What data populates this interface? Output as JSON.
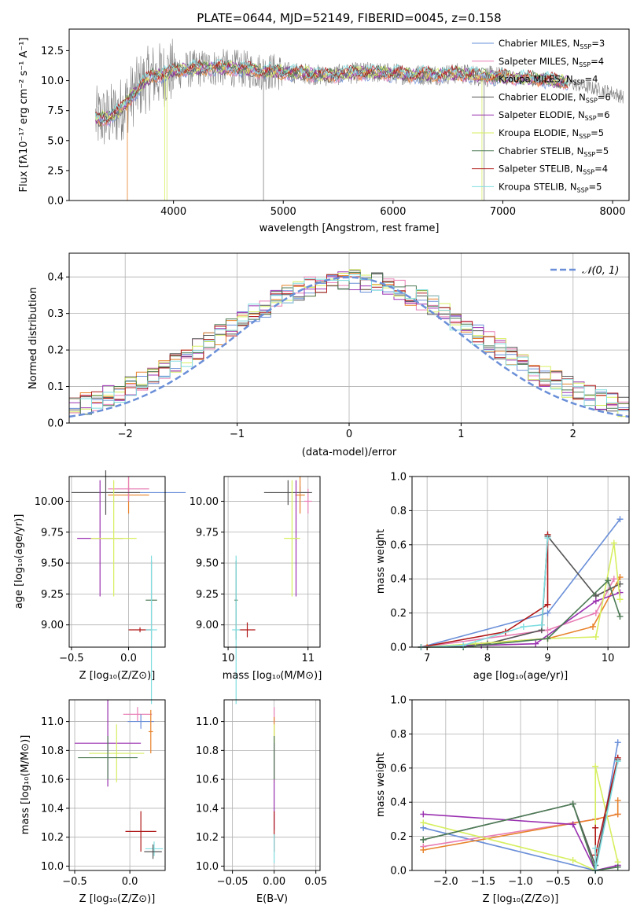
{
  "colors": {
    "chabrier_miles": "#6a8fd8",
    "salpeter_miles": "#e87fb5",
    "kroupa_miles": "#e8822a",
    "chabrier_elodie": "#555555",
    "salpeter_elodie": "#9a30b0",
    "kroupa_elodie": "#d6ef60",
    "chabrier_stelib": "#4c7a55",
    "salpeter_stelib": "#b01818",
    "kroupa_stelib": "#80dde0",
    "normal": "#6a8fd8",
    "grid": "#b0b0b0",
    "spectrum": "#808080"
  },
  "chart_data": [
    {
      "id": "spectrum",
      "type": "line",
      "title": "PLATE=0644, MJD=52149, FIBERID=0045, z=0.158",
      "xlabel": "wavelength [Angstrom, rest frame]",
      "ylabel": "Flux [fλ10⁻¹⁷ erg cm⁻² s⁻¹ A⁻¹]",
      "xlim": [
        3050,
        8150
      ],
      "ylim": [
        0,
        14.3
      ],
      "xticks": [
        "4000",
        "5000",
        "6000",
        "7000",
        "8000"
      ],
      "yticks": [
        "0.0",
        "2.5",
        "5.0",
        "7.5",
        "10.0",
        "12.5"
      ],
      "grid": false,
      "legend_position": "top-right",
      "legend": [
        {
          "label": "Chabrier MILES, N",
          "sub": "SSP",
          "value": "=3"
        },
        {
          "label": "Salpeter MILES, N",
          "sub": "SSP",
          "value": "=4"
        },
        {
          "label": "Kroupa MILES, N",
          "sub": "SSP",
          "value": "=4"
        },
        {
          "label": "Chabrier ELODIE, N",
          "sub": "SSP",
          "value": "=6"
        },
        {
          "label": "Salpeter ELODIE, N",
          "sub": "SSP",
          "value": "=6"
        },
        {
          "label": "Kroupa ELODIE, N",
          "sub": "SSP",
          "value": "=5"
        },
        {
          "label": "Chabrier STELIB, N",
          "sub": "SSP",
          "value": "=5"
        },
        {
          "label": "Salpeter STELIB, N",
          "sub": "SSP",
          "value": "=4"
        },
        {
          "label": "Kroupa STELIB, N",
          "sub": "SSP",
          "value": "=5"
        }
      ],
      "spectrum_anchors": [
        [
          3290,
          6.8
        ],
        [
          3400,
          6.9
        ],
        [
          3500,
          7.4
        ],
        [
          3600,
          8.5
        ],
        [
          3700,
          9.6
        ],
        [
          3800,
          10.4
        ],
        [
          3900,
          10.5
        ],
        [
          4000,
          10.8
        ],
        [
          4200,
          11.0
        ],
        [
          4400,
          11.1
        ],
        [
          4600,
          11.0
        ],
        [
          4800,
          10.8
        ],
        [
          5000,
          10.7
        ],
        [
          5200,
          10.6
        ],
        [
          5400,
          10.4
        ],
        [
          5600,
          10.6
        ],
        [
          5800,
          10.7
        ],
        [
          6000,
          10.6
        ],
        [
          6200,
          10.5
        ],
        [
          6400,
          10.5
        ],
        [
          6600,
          10.6
        ],
        [
          6800,
          10.4
        ],
        [
          7000,
          10.3
        ],
        [
          7200,
          10.2
        ],
        [
          7400,
          10.1
        ],
        [
          7600,
          9.8
        ],
        [
          7800,
          9.4
        ],
        [
          8000,
          9.0
        ],
        [
          8100,
          8.6
        ]
      ]
    },
    {
      "id": "residuals",
      "type": "histogram",
      "xlabel": "(data-model)/error",
      "ylabel": "Normed distribution",
      "xlim": [
        -2.5,
        2.5
      ],
      "ylim": [
        0,
        0.465
      ],
      "xticks": [
        "−2",
        "−1",
        "0",
        "1",
        "2"
      ],
      "yticks": [
        "0.0",
        "0.1",
        "0.2",
        "0.3",
        "0.4"
      ],
      "grid": true,
      "legend_position": "top-right",
      "legend": [
        {
          "label": "𝒩(0, 1)"
        }
      ],
      "bin_width": 0.1,
      "bins_from": -2.5
    },
    {
      "id": "age_vs_Z",
      "type": "errorbar",
      "xlabel": "Z [log₁₀(Z/Z⊙)]",
      "ylabel": "age  [log₁₀(age/yr)]",
      "xlim": [
        -0.52,
        0.32
      ],
      "ylim": [
        8.82,
        10.2
      ],
      "xticks": [
        "−0.5",
        "0.0"
      ],
      "yticks": [
        "9.00",
        "9.25",
        "9.50",
        "9.75",
        "10.00"
      ],
      "grid": true,
      "points": [
        {
          "series": "chabrier_miles",
          "x": 0.0,
          "xerr": 0.5,
          "y": 10.07,
          "yerr": 0.05
        },
        {
          "series": "kroupa_miles",
          "x": 0.0,
          "xerr": 0.18,
          "y": 10.05,
          "yerr": 0.15
        },
        {
          "series": "salpeter_miles",
          "x": 0.0,
          "xerr": 0.18,
          "y": 10.1,
          "yerr": 0.1
        },
        {
          "series": "chabrier_elodie",
          "x": -0.2,
          "xerr": 0.3,
          "y": 10.07,
          "yerr": 0.18
        },
        {
          "series": "salpeter_elodie",
          "x": -0.25,
          "xerr": 0.2,
          "y": 9.7,
          "yerr": 0.47
        },
        {
          "series": "kroupa_elodie",
          "x": -0.13,
          "xerr": 0.2,
          "y": 9.7,
          "yerr": 0.47
        },
        {
          "series": "chabrier_stelib",
          "x": 0.2,
          "xerr": 0.05,
          "y": 9.2,
          "yerr": 0.32
        },
        {
          "series": "salpeter_stelib",
          "x": 0.1,
          "xerr": 0.1,
          "y": 8.96,
          "yerr": 0.02
        },
        {
          "series": "kroupa_stelib",
          "x": 0.2,
          "xerr": 0.05,
          "y": 8.96,
          "yerr": 0.6
        }
      ]
    },
    {
      "id": "age_vs_mass",
      "type": "errorbar",
      "xlabel": "mass [log₁₀(M/M⊙)]",
      "xlim": [
        9.95,
        11.15
      ],
      "ylim": [
        8.82,
        10.2
      ],
      "xticks": [
        "10",
        "11"
      ],
      "yticks": [
        "9.00",
        "9.25",
        "9.50",
        "9.75",
        "10.00"
      ],
      "grid": true,
      "points": [
        {
          "series": "chabrier_miles",
          "x": 10.9,
          "xerr": 0.1,
          "y": 10.07,
          "yerr": 0.05
        },
        {
          "series": "kroupa_miles",
          "x": 10.9,
          "xerr": 0.06,
          "y": 10.05,
          "yerr": 0.15
        },
        {
          "series": "salpeter_miles",
          "x": 11.0,
          "xerr": 0.05,
          "y": 10.0,
          "yerr": 0.1
        },
        {
          "series": "chabrier_elodie",
          "x": 10.75,
          "xerr": 0.3,
          "y": 10.07,
          "yerr": 0.1
        },
        {
          "series": "salpeter_elodie",
          "x": 10.85,
          "xerr": 0.02,
          "y": 9.7,
          "yerr": 0.47
        },
        {
          "series": "kroupa_elodie",
          "x": 10.8,
          "xerr": 0.1,
          "y": 9.7,
          "yerr": 0.47
        },
        {
          "series": "chabrier_stelib",
          "x": 10.1,
          "xerr": 0.02,
          "y": 9.2,
          "yerr": 0.32
        },
        {
          "series": "salpeter_stelib",
          "x": 10.24,
          "xerr": 0.1,
          "y": 8.96,
          "yerr": 0.06
        },
        {
          "series": "kroupa_stelib",
          "x": 10.1,
          "xerr": 0.05,
          "y": 8.96,
          "yerr": 0.6
        }
      ]
    },
    {
      "id": "weight_vs_age",
      "type": "line",
      "xlabel": "age  [log₁₀(age/yr)]",
      "ylabel": "mass weight",
      "xlim": [
        6.75,
        10.35
      ],
      "ylim": [
        0,
        1
      ],
      "xticks": [
        "7",
        "8",
        "9",
        "10"
      ],
      "yticks": [
        "0.0",
        "0.2",
        "0.4",
        "0.6",
        "0.8",
        "1.0"
      ],
      "grid": true,
      "series": [
        {
          "key": "chabrier_miles",
          "x": [
            6.9,
            9.0,
            10.2
          ],
          "y": [
            0.0,
            0.2,
            0.75
          ]
        },
        {
          "key": "salpeter_miles",
          "x": [
            6.9,
            9.0,
            9.8,
            10.1
          ],
          "y": [
            0.0,
            0.1,
            0.2,
            0.4
          ]
        },
        {
          "key": "kroupa_miles",
          "x": [
            7.0,
            9.0,
            9.75,
            10.2
          ],
          "y": [
            0.0,
            0.05,
            0.12,
            0.41
          ]
        },
        {
          "key": "chabrier_elodie",
          "x": [
            6.9,
            8.0,
            8.9,
            9.0,
            9.8,
            10.2
          ],
          "y": [
            0.0,
            0.02,
            0.1,
            0.65,
            0.3,
            0.37
          ]
        },
        {
          "key": "salpeter_elodie",
          "x": [
            6.9,
            7.9,
            8.8,
            9.8,
            10.2
          ],
          "y": [
            0.0,
            0.01,
            0.02,
            0.27,
            0.32
          ]
        },
        {
          "key": "kroupa_elodie",
          "x": [
            6.9,
            7.8,
            9.0,
            9.8,
            10.1,
            10.2
          ],
          "y": [
            0.0,
            0.02,
            0.05,
            0.06,
            0.61,
            0.28
          ]
        },
        {
          "key": "chabrier_stelib",
          "x": [
            6.9,
            7.6,
            9.0,
            10.0,
            10.2
          ],
          "y": [
            0.0,
            0.0,
            0.05,
            0.39,
            0.18
          ]
        },
        {
          "key": "salpeter_stelib",
          "x": [
            6.9,
            8.3,
            9.0,
            9.0
          ],
          "y": [
            0.0,
            0.09,
            0.25,
            0.66
          ]
        },
        {
          "key": "kroupa_stelib",
          "x": [
            6.9,
            7.6,
            8.6,
            8.9,
            9.0
          ],
          "y": [
            0.0,
            0.01,
            0.12,
            0.13,
            0.64
          ]
        }
      ]
    },
    {
      "id": "mass_vs_Z",
      "type": "errorbar",
      "xlabel": "Z [log₁₀(Z/Z⊙)]",
      "ylabel": "mass [log₁₀(M/M⊙)]",
      "xlim": [
        -0.55,
        0.32
      ],
      "ylim": [
        9.97,
        11.15
      ],
      "xticks": [
        "−0.5",
        "0.0"
      ],
      "yticks": [
        "10.0",
        "10.2",
        "10.4",
        "10.6",
        "10.8",
        "11.0"
      ],
      "grid": true,
      "points": [
        {
          "series": "salpeter_miles",
          "x": 0.07,
          "xerr": 0.13,
          "y": 11.05,
          "yerr": 0.05
        },
        {
          "series": "chabrier_miles",
          "x": 0.1,
          "xerr": 0.12,
          "y": 11.0,
          "yerr": 0.05
        },
        {
          "series": "kroupa_miles",
          "x": 0.19,
          "xerr": 0.02,
          "y": 10.93,
          "yerr": 0.15
        },
        {
          "series": "salpeter_elodie",
          "x": -0.2,
          "xerr": 0.3,
          "y": 10.85,
          "yerr": 0.3
        },
        {
          "series": "kroupa_elodie",
          "x": -0.12,
          "xerr": 0.25,
          "y": 10.78,
          "yerr": 0.2
        },
        {
          "series": "chabrier_stelib",
          "x": -0.2,
          "xerr": 0.27,
          "y": 10.75,
          "yerr": 0.15
        },
        {
          "series": "salpeter_stelib",
          "x": 0.1,
          "xerr": 0.14,
          "y": 10.24,
          "yerr": 0.14
        },
        {
          "series": "kroupa_stelib",
          "x": 0.22,
          "xerr": 0.08,
          "y": 10.12,
          "yerr": 0.05
        },
        {
          "series": "chabrier_elodie",
          "x": 0.21,
          "xerr": 0.08,
          "y": 10.1,
          "yerr": 0.05
        }
      ]
    },
    {
      "id": "mass_vs_ebv",
      "type": "errorbar",
      "xlabel": "E(B-V)",
      "xlim": [
        -0.06,
        0.055
      ],
      "ylim": [
        9.97,
        11.15
      ],
      "xticks": [
        "−0.05",
        "0.00",
        "0.05"
      ],
      "yticks": [
        "10.0",
        "10.2",
        "10.4",
        "10.6",
        "10.8",
        "11.0"
      ],
      "grid": true,
      "points": [
        {
          "series": "salpeter_miles",
          "x": 0.0,
          "xerr": 0.0,
          "y": 11.05,
          "yerr": 0.05
        },
        {
          "series": "kroupa_miles",
          "x": 0.0,
          "xerr": 0.0,
          "y": 10.93,
          "yerr": 0.1
        },
        {
          "series": "kroupa_elodie",
          "x": 0.0,
          "xerr": 0.0,
          "y": 10.78,
          "yerr": 0.2
        },
        {
          "series": "salpeter_elodie",
          "x": 0.0,
          "xerr": 0.0,
          "y": 10.55,
          "yerr": 0.3
        },
        {
          "series": "chabrier_stelib",
          "x": 0.0,
          "xerr": 0.0,
          "y": 10.75,
          "yerr": 0.15
        },
        {
          "series": "salpeter_stelib",
          "x": 0.0,
          "xerr": 0.0,
          "y": 10.24,
          "yerr": 0.14
        },
        {
          "series": "kroupa_stelib",
          "x": 0.0,
          "xerr": 0.0,
          "y": 10.12,
          "yerr": 0.1
        }
      ]
    },
    {
      "id": "weight_vs_Z",
      "type": "line",
      "xlabel": "Z [log₁₀(Z/Z⊙)]",
      "ylabel": "mass weight",
      "xlim": [
        -2.45,
        0.45
      ],
      "ylim": [
        0,
        1
      ],
      "xticks": [
        "−2.0",
        "−1.5",
        "−1.0",
        "−0.5",
        "0.0"
      ],
      "yticks": [
        "0.0",
        "0.2",
        "0.4",
        "0.6",
        "0.8",
        "1.0"
      ],
      "grid": true,
      "series": [
        {
          "key": "chabrier_miles",
          "x": [
            -2.3,
            0.0,
            0.3
          ],
          "y": [
            0.25,
            0.0,
            0.75
          ]
        },
        {
          "key": "salpeter_miles",
          "x": [
            -2.3,
            0.0,
            0.3
          ],
          "y": [
            0.14,
            0.3,
            0.33
          ]
        },
        {
          "key": "kroupa_miles",
          "x": [
            -2.3,
            0.0,
            0.3,
            0.3
          ],
          "y": [
            0.12,
            0.3,
            0.33,
            0.41
          ]
        },
        {
          "key": "chabrier_elodie",
          "x": [
            -2.3,
            -0.3,
            0.0,
            0.3
          ],
          "y": [
            0.18,
            0.39,
            0.03,
            0.65
          ]
        },
        {
          "key": "salpeter_elodie",
          "x": [
            -2.3,
            -0.3,
            0.0,
            0.3
          ],
          "y": [
            0.33,
            0.27,
            0.0,
            0.03
          ]
        },
        {
          "key": "kroupa_elodie",
          "x": [
            -2.3,
            -0.3,
            0.0,
            0.0,
            0.3
          ],
          "y": [
            0.28,
            0.06,
            0.0,
            0.61,
            0.05
          ]
        },
        {
          "key": "chabrier_stelib",
          "x": [
            -2.3,
            -0.3,
            0.0,
            0.3
          ],
          "y": [
            0.18,
            0.39,
            0.0,
            0.02
          ]
        },
        {
          "key": "salpeter_stelib",
          "x": [
            0.0,
            0.0,
            0.3
          ],
          "y": [
            0.25,
            0.09,
            0.66
          ]
        },
        {
          "key": "kroupa_stelib",
          "x": [
            0.0,
            0.0,
            0.3
          ],
          "y": [
            0.13,
            0.0,
            0.64
          ]
        }
      ]
    }
  ]
}
